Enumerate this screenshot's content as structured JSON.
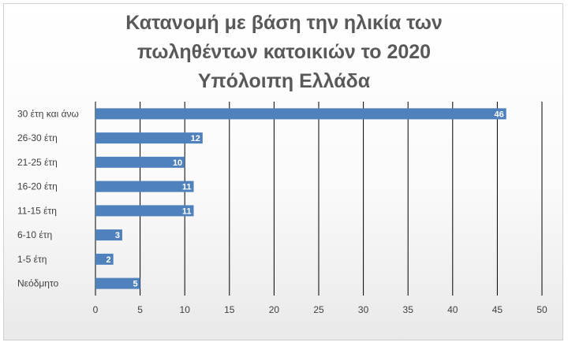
{
  "chart_data": {
    "type": "bar",
    "orientation": "horizontal",
    "title_lines": [
      "Κατανομή με βάση την ηλικία των",
      "πωληθέντων κατοικιών το 2020",
      "Υπόλοιπη Ελλάδα"
    ],
    "categories": [
      "30 έτη και άνω",
      "26-30 έτη",
      "21-25 έτη",
      "16-20 έτη",
      "11-15 έτη",
      "6-10 έτη",
      "1-5 έτη",
      "Νεόδμητο"
    ],
    "values": [
      46,
      12,
      10,
      11,
      11,
      3,
      2,
      5
    ],
    "xlim": [
      0,
      50
    ],
    "xticks": [
      0,
      5,
      10,
      15,
      20,
      25,
      30,
      35,
      40,
      45,
      50
    ],
    "grid": "vertical",
    "data_labels": true,
    "legend": "none",
    "bar_color": "#4f81bd"
  }
}
